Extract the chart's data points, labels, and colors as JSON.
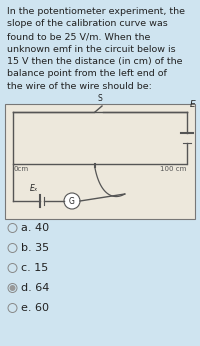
{
  "bg_color": "#cfe4f0",
  "diagram_bg": "#ede8dc",
  "text_question": "In the potentiometer experiment, the\nslope of the calibration curve was\nfound to be 25 V/m. When the\nunknown emf in the circuit below is\n15 V then the distance (in cm) of the\nbalance point from the left end of\nthe wire of the wire should be:",
  "options": [
    "a. 40",
    "b. 35",
    "c. 15",
    "d. 64",
    "e. 60"
  ],
  "label_0cm": "0cm",
  "label_100cm": "100 cm",
  "label_E": "E",
  "label_Ex": "Eₓ",
  "label_S": "S",
  "text_fontsize": 6.8,
  "option_fontsize": 8.0,
  "wire_color": "#555555",
  "text_color": "#222222"
}
